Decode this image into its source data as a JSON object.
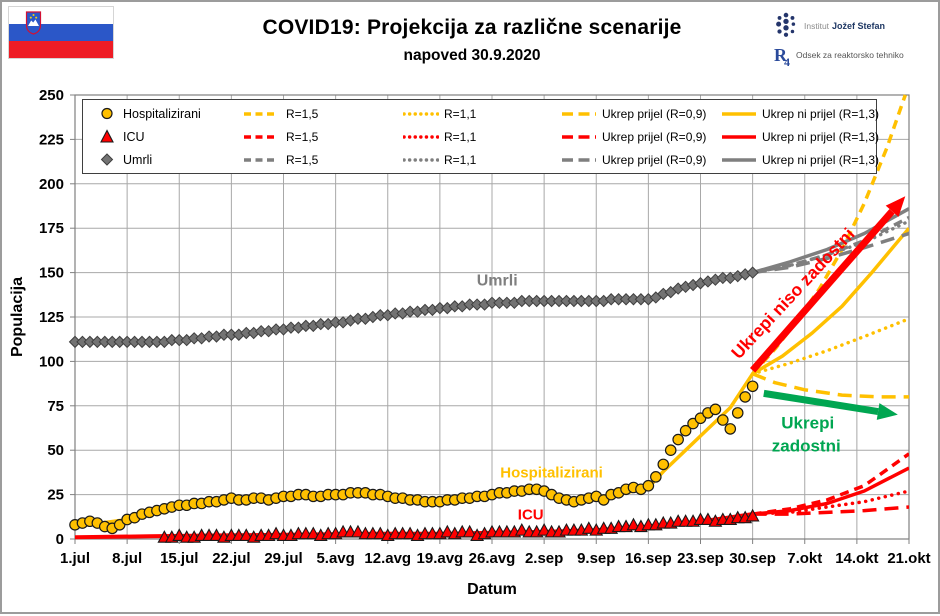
{
  "header": {
    "title": "COVID19: Projekcija za različne scenarije",
    "subtitle": "napoved 30.9.2020",
    "logos": {
      "ijs_light": "Institut",
      "ijs_bold": "Jožef Stefan",
      "r4_r": "R",
      "r4_4": "4",
      "dept": "Odsek za reaktorsko tehniko"
    }
  },
  "colors": {
    "yellow": "#FFC000",
    "red": "#FF0000",
    "gray": "#7F7F7F",
    "green": "#00A651",
    "grid": "#A8A8A8",
    "axis": "#808080",
    "text": "#000000",
    "flag_blue": "#2B57C8",
    "flag_red": "#EE1C25"
  },
  "legend": {
    "rows": [
      {
        "label": "Hospitalizirani",
        "marker": "circle",
        "color": "#FFC000"
      },
      {
        "label": "ICU",
        "marker": "triangle",
        "color": "#FF0000"
      },
      {
        "label": "Umrli",
        "marker": "diamond",
        "color": "#7F7F7F"
      }
    ],
    "scenarios": [
      {
        "style": "dashed",
        "label": "R=1,5"
      },
      {
        "style": "dotted",
        "label": "R=1,1"
      },
      {
        "style": "longdash",
        "label": "Ukrep prijel (R=0,9)"
      },
      {
        "style": "solid",
        "label": "Ukrep ni prijel (R=1,3)"
      }
    ]
  },
  "chart_data": {
    "type": "line",
    "title": "COVID19: Projekcija za različne scenarije",
    "subtitle": "napoved 30.9.2020",
    "xlabel": "Datum",
    "ylabel": "Populacija",
    "ylim": [
      0,
      250
    ],
    "yticks": [
      0,
      25,
      50,
      75,
      100,
      125,
      150,
      175,
      200,
      225,
      250
    ],
    "x_total_days": 112,
    "xticks": [
      {
        "label": "1.jul",
        "day": 0
      },
      {
        "label": "8.jul",
        "day": 7
      },
      {
        "label": "15.jul",
        "day": 14
      },
      {
        "label": "22.jul",
        "day": 21
      },
      {
        "label": "29.jul",
        "day": 28
      },
      {
        "label": "5.avg",
        "day": 35
      },
      {
        "label": "12.avg",
        "day": 42
      },
      {
        "label": "19.avg",
        "day": 49
      },
      {
        "label": "26.avg",
        "day": 56
      },
      {
        "label": "2.sep",
        "day": 63
      },
      {
        "label": "9.sep",
        "day": 70
      },
      {
        "label": "16.sep",
        "day": 77
      },
      {
        "label": "23.sep",
        "day": 84
      },
      {
        "label": "30.sep",
        "day": 91
      },
      {
        "label": "7.okt",
        "day": 98
      },
      {
        "label": "14.okt",
        "day": 105
      },
      {
        "label": "21.okt",
        "day": 112
      }
    ],
    "series_observed": [
      {
        "name": "Hospitalizirani",
        "color": "#FFC000",
        "marker": "circle",
        "start_day": 0,
        "values": [
          8,
          9,
          10,
          9,
          7,
          6,
          8,
          11,
          12,
          14,
          15,
          16,
          17,
          18,
          19,
          19,
          20,
          20,
          21,
          21,
          22,
          23,
          22,
          22,
          23,
          23,
          22,
          23,
          24,
          24,
          25,
          25,
          24,
          24,
          25,
          25,
          25,
          26,
          26,
          26,
          25,
          25,
          24,
          23,
          23,
          22,
          22,
          21,
          21,
          21,
          22,
          22,
          23,
          23,
          24,
          24,
          25,
          26,
          26,
          27,
          27,
          28,
          28,
          27,
          25,
          23,
          22,
          21,
          22,
          23,
          24,
          22,
          25,
          26,
          28,
          29,
          28,
          30,
          35,
          42,
          50,
          56,
          61,
          65,
          68,
          71,
          73,
          67,
          62,
          71,
          80,
          86
        ]
      },
      {
        "name": "ICU",
        "color": "#FF0000",
        "marker": "triangle",
        "start_day": 12,
        "values": [
          1,
          1,
          2,
          1,
          1,
          2,
          2,
          2,
          1,
          2,
          2,
          2,
          1,
          2,
          2,
          3,
          2,
          2,
          3,
          3,
          3,
          2,
          3,
          3,
          4,
          4,
          4,
          3,
          3,
          3,
          2,
          3,
          3,
          3,
          2,
          3,
          3,
          3,
          4,
          3,
          4,
          4,
          2,
          3,
          4,
          4,
          4,
          4,
          5,
          4,
          4,
          5,
          4,
          4,
          5,
          5,
          5,
          6,
          5,
          6,
          6,
          7,
          7,
          8,
          7,
          8,
          8,
          9,
          9,
          10,
          10,
          10,
          11,
          11,
          10,
          11,
          11,
          12,
          12,
          13
        ]
      },
      {
        "name": "Umrli",
        "color": "#7F7F7F",
        "marker": "diamond",
        "start_day": 0,
        "values": [
          111,
          111,
          111,
          111,
          111,
          111,
          111,
          111,
          111,
          111,
          111,
          111,
          111,
          112,
          112,
          112,
          113,
          113,
          114,
          114,
          115,
          115,
          115,
          116,
          116,
          117,
          117,
          118,
          118,
          119,
          119,
          120,
          120,
          121,
          121,
          122,
          122,
          123,
          124,
          124,
          125,
          126,
          126,
          127,
          127,
          128,
          128,
          129,
          129,
          130,
          130,
          131,
          131,
          132,
          132,
          132,
          133,
          133,
          133,
          133,
          134,
          134,
          134,
          134,
          134,
          134,
          134,
          134,
          134,
          134,
          134,
          134,
          135,
          135,
          135,
          135,
          135,
          135,
          136,
          138,
          139,
          141,
          142,
          143,
          144,
          145,
          146,
          147,
          147,
          148,
          149,
          150
        ]
      }
    ],
    "fits": [
      {
        "series": "Hospitalizirani",
        "color": "#FFC000",
        "width": 3.5,
        "points": [
          [
            0,
            7
          ],
          [
            7,
            11
          ],
          [
            14,
            19
          ],
          [
            21,
            22
          ],
          [
            28,
            24
          ],
          [
            35,
            25
          ],
          [
            42,
            24
          ],
          [
            49,
            22
          ],
          [
            56,
            24
          ],
          [
            63,
            27
          ],
          [
            66,
            23
          ],
          [
            70,
            23
          ],
          [
            73,
            25
          ],
          [
            77,
            29
          ],
          [
            79,
            38
          ],
          [
            82,
            50
          ],
          [
            85,
            62
          ],
          [
            88,
            74
          ],
          [
            91,
            93
          ]
        ]
      },
      {
        "series": "ICU",
        "color": "#FF0000",
        "width": 4,
        "points": [
          [
            0,
            1
          ],
          [
            10,
            1.5
          ],
          [
            20,
            2
          ],
          [
            30,
            2.5
          ],
          [
            40,
            3
          ],
          [
            50,
            3
          ],
          [
            56,
            3.5
          ],
          [
            63,
            4
          ],
          [
            70,
            5
          ],
          [
            77,
            7
          ],
          [
            82,
            9
          ],
          [
            86,
            11
          ],
          [
            91,
            14
          ]
        ]
      },
      {
        "series": "Umrli",
        "color": "#7F7F7F",
        "width": 3,
        "points": [
          [
            0,
            111
          ],
          [
            14,
            112
          ],
          [
            21,
            115
          ],
          [
            28,
            118
          ],
          [
            35,
            122
          ],
          [
            42,
            126
          ],
          [
            49,
            130
          ],
          [
            56,
            133
          ],
          [
            63,
            134
          ],
          [
            70,
            134
          ],
          [
            77,
            135
          ],
          [
            80,
            139
          ],
          [
            84,
            144
          ],
          [
            88,
            148
          ],
          [
            91,
            150
          ]
        ]
      }
    ],
    "projections": [
      {
        "series": "Hospitalizirani",
        "scenario": "R=1,5",
        "style": "dashed",
        "color": "#FFC000",
        "points": [
          [
            91,
            93
          ],
          [
            94,
            107
          ],
          [
            97,
            123
          ],
          [
            100,
            141
          ],
          [
            103,
            163
          ],
          [
            106,
            189
          ],
          [
            109,
            220
          ],
          [
            111.5,
            250
          ]
        ]
      },
      {
        "series": "Hospitalizirani",
        "scenario": "Ukrep ni prijel (R=1,3)",
        "style": "solid",
        "color": "#FFC000",
        "points": [
          [
            91,
            93
          ],
          [
            95,
            103
          ],
          [
            99,
            116
          ],
          [
            103,
            131
          ],
          [
            107,
            150
          ],
          [
            112,
            175
          ]
        ]
      },
      {
        "series": "Hospitalizirani",
        "scenario": "R=1,1",
        "style": "dotted",
        "color": "#FFC000",
        "points": [
          [
            91,
            93
          ],
          [
            96,
            99
          ],
          [
            101,
            106
          ],
          [
            106,
            114
          ],
          [
            112,
            124
          ]
        ]
      },
      {
        "series": "Hospitalizirani",
        "scenario": "Ukrep prijel (R=0,9)",
        "style": "longdash",
        "color": "#FFC000",
        "points": [
          [
            91,
            93
          ],
          [
            94,
            88
          ],
          [
            98,
            84
          ],
          [
            103,
            81
          ],
          [
            108,
            80
          ],
          [
            112,
            80
          ]
        ]
      },
      {
        "series": "ICU",
        "scenario": "R=1,5",
        "style": "dashed",
        "color": "#FF0000",
        "points": [
          [
            91,
            14
          ],
          [
            96,
            17
          ],
          [
            101,
            22
          ],
          [
            106,
            30
          ],
          [
            112,
            48
          ]
        ]
      },
      {
        "series": "ICU",
        "scenario": "Ukrep ni prijel (R=1,3)",
        "style": "solid",
        "color": "#FF0000",
        "points": [
          [
            91,
            14
          ],
          [
            96,
            16
          ],
          [
            101,
            20
          ],
          [
            106,
            27
          ],
          [
            112,
            40
          ]
        ]
      },
      {
        "series": "ICU",
        "scenario": "R=1,1",
        "style": "dotted",
        "color": "#FF0000",
        "points": [
          [
            91,
            14
          ],
          [
            96,
            15
          ],
          [
            101,
            18
          ],
          [
            106,
            21
          ],
          [
            112,
            27
          ]
        ]
      },
      {
        "series": "ICU",
        "scenario": "Ukrep prijel (R=0,9)",
        "style": "longdash",
        "color": "#FF0000",
        "points": [
          [
            91,
            14
          ],
          [
            96,
            14
          ],
          [
            101,
            15
          ],
          [
            106,
            16
          ],
          [
            112,
            18
          ]
        ]
      },
      {
        "series": "Umrli",
        "scenario": "R=1,5",
        "style": "dashed",
        "color": "#7F7F7F",
        "points": [
          [
            91,
            150
          ],
          [
            96,
            154
          ],
          [
            101,
            160
          ],
          [
            106,
            168
          ],
          [
            112,
            181
          ]
        ]
      },
      {
        "series": "Umrli",
        "scenario": "Ukrep ni prijel (R=1,3)",
        "style": "solid",
        "color": "#7F7F7F",
        "points": [
          [
            91,
            150
          ],
          [
            96,
            156
          ],
          [
            101,
            163
          ],
          [
            106,
            172
          ],
          [
            112,
            186
          ]
        ]
      },
      {
        "series": "Umrli",
        "scenario": "R=1,1",
        "style": "dotted",
        "color": "#7F7F7F",
        "points": [
          [
            91,
            150
          ],
          [
            96,
            154
          ],
          [
            101,
            160
          ],
          [
            106,
            167
          ],
          [
            112,
            179
          ]
        ]
      },
      {
        "series": "Umrli",
        "scenario": "Ukrep prijel (R=0,9)",
        "style": "longdash",
        "color": "#7F7F7F",
        "points": [
          [
            91,
            150
          ],
          [
            96,
            153
          ],
          [
            101,
            158
          ],
          [
            106,
            164
          ],
          [
            112,
            172
          ]
        ]
      }
    ],
    "annotations": {
      "labels": [
        {
          "text": "Umrli",
          "day": 56.7,
          "value": 146,
          "color": "#7F7F7F",
          "size": 16,
          "rotation": 0
        },
        {
          "text": "Hospitalizirani",
          "day": 64,
          "value": 37.5,
          "color": "#FFC000",
          "size": 15,
          "rotation": 0
        },
        {
          "text": "ICU",
          "day": 61.2,
          "value": 14,
          "color": "#FF0000",
          "size": 15,
          "rotation": 0
        },
        {
          "text": "Ukrepi niso zadostni",
          "day": 97,
          "value": 139.5,
          "color": "#FF0000",
          "size": 17.5,
          "rotation": -47
        },
        {
          "text": "Ukrepi",
          "day": 98.4,
          "value": 65.5,
          "color": "#00A651",
          "size": 17,
          "rotation": 0
        },
        {
          "text": "zadostni",
          "day": 98.2,
          "value": 52.5,
          "color": "#00A651",
          "size": 17,
          "rotation": 0
        }
      ],
      "arrows": [
        {
          "name": "ukrepi-niso-zadostni-arrow",
          "color": "#FF0000",
          "from": [
            91,
            95
          ],
          "to": [
            111.5,
            193
          ]
        },
        {
          "name": "ukrepi-zadostni-arrow",
          "color": "#00A651",
          "from": [
            92.5,
            82
          ],
          "to": [
            110.5,
            70
          ]
        }
      ]
    }
  }
}
